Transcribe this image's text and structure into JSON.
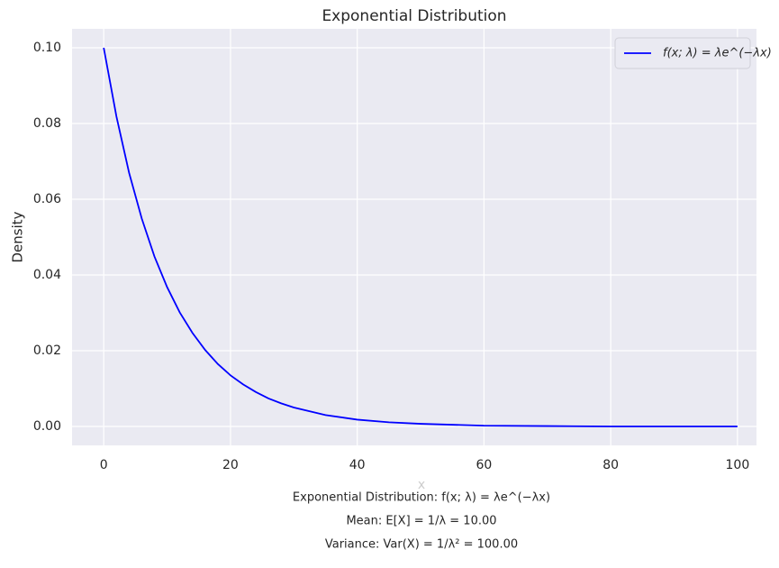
{
  "chart_data": {
    "type": "line",
    "title": "Exponential Distribution",
    "xlabel": "x",
    "ylabel": "Density",
    "x": [
      0,
      2,
      4,
      6,
      8,
      10,
      12,
      14,
      16,
      18,
      20,
      22,
      24,
      26,
      28,
      30,
      35,
      40,
      45,
      50,
      60,
      70,
      80,
      90,
      100
    ],
    "series": [
      {
        "name": "f(x; λ) = λe^(−λx)",
        "color": "#0000ff",
        "values": [
          0.1,
          0.0819,
          0.067,
          0.0549,
          0.0449,
          0.0368,
          0.0301,
          0.0247,
          0.0202,
          0.0165,
          0.0135,
          0.0111,
          0.0091,
          0.0074,
          0.0061,
          0.005,
          0.003,
          0.0018,
          0.0011,
          0.0007,
          0.0002,
          0.0001,
          0,
          0,
          0
        ]
      }
    ],
    "xlim": [
      -5,
      103
    ],
    "xticks": [
      0,
      20,
      40,
      60,
      80,
      100
    ],
    "ylim": [
      -0.005,
      0.105
    ],
    "yticks": [
      {
        "value": 0,
        "label": "0.00"
      },
      {
        "value": 0.02,
        "label": "0.02"
      },
      {
        "value": 0.04,
        "label": "0.04"
      },
      {
        "value": 0.06,
        "label": "0.06"
      },
      {
        "value": 0.08,
        "label": "0.08"
      },
      {
        "value": 0.1,
        "label": "0.10"
      }
    ],
    "grid": true,
    "legend": "upper right",
    "annotations": [
      "Exponential Distribution: f(x; λ) = λe^(−λx)",
      "Mean: E[X] = 1/λ = 10.00",
      "Variance: Var(X) = 1/λ² = 100.00"
    ]
  }
}
